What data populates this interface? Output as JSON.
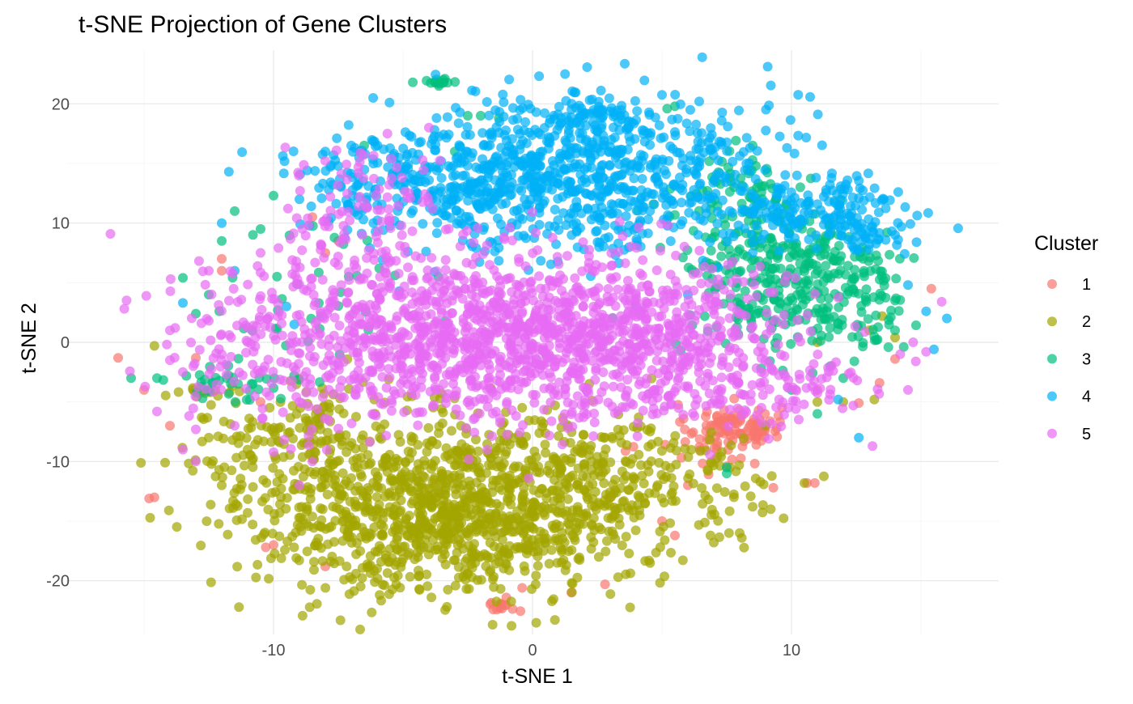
{
  "chart_data": {
    "type": "scatter",
    "title": "t-SNE Projection of Gene Clusters",
    "xlabel": "t-SNE 1",
    "ylabel": "t-SNE 2",
    "xlim": [
      -18,
      18
    ],
    "ylim": [
      -24.5,
      24.5
    ],
    "x_ticks": [
      -10,
      0,
      10
    ],
    "x_tick_labels": [
      "-10",
      "0",
      "10"
    ],
    "y_ticks": [
      -20,
      -10,
      0,
      10,
      20
    ],
    "y_tick_labels": [
      "-20",
      "-10",
      "0",
      "10",
      "20"
    ],
    "grid": true,
    "legend": {
      "title": "Cluster",
      "position": "right"
    },
    "series": [
      {
        "name": "1",
        "color": "#F8766D",
        "blobs": [
          {
            "cx": 7.8,
            "cy": -7.0,
            "sx": 0.9,
            "sy": 0.9,
            "n": 90
          },
          {
            "cx": -1.2,
            "cy": -22.0,
            "sx": 0.4,
            "sy": 0.3,
            "n": 14
          },
          {
            "cx": 6.5,
            "cy": -9.0,
            "sx": 1.2,
            "sy": 1.0,
            "n": 25
          }
        ],
        "points": [
          [
            -16.0,
            -1.3
          ],
          [
            -14.6,
            -13.0
          ],
          [
            -14.8,
            -13.1
          ],
          [
            -15.0,
            -4.0
          ],
          [
            -14.0,
            -7.0
          ],
          [
            -12.0,
            7.0
          ],
          [
            -12.0,
            6.0
          ],
          [
            -10.5,
            -5.0
          ],
          [
            -8.0,
            7.5
          ],
          [
            -7.5,
            8.5
          ],
          [
            -8.5,
            10.5
          ],
          [
            -10.0,
            -17.0
          ],
          [
            -10.3,
            -17.2
          ],
          [
            -8.0,
            -18.8
          ],
          [
            1.5,
            -21.0
          ],
          [
            2.8,
            -20.3
          ],
          [
            5.5,
            -16.2
          ],
          [
            10.9,
            -11.8
          ],
          [
            10.6,
            -11.8
          ],
          [
            9.3,
            -12.2
          ],
          [
            13.4,
            -3.4
          ],
          [
            14.0,
            -1.4
          ],
          [
            15.4,
            4.5
          ],
          [
            12.6,
            -5.1
          ],
          [
            11.0,
            -4.0
          ],
          [
            5.0,
            -15.0
          ],
          [
            6.0,
            -12.0
          ],
          [
            3.0,
            -13.0
          ],
          [
            -13.0,
            -1.3
          ],
          [
            -0.4,
            -20.6
          ]
        ]
      },
      {
        "name": "2",
        "color": "#A3A500",
        "blobs": [
          {
            "cx": -3.0,
            "cy": -14.0,
            "sx": 3.8,
            "sy": 3.6,
            "n": 1150
          },
          {
            "cx": 3.0,
            "cy": -11.0,
            "sx": 2.4,
            "sy": 2.4,
            "n": 170
          },
          {
            "cx": -8.5,
            "cy": -8.0,
            "sx": 1.6,
            "sy": 2.4,
            "n": 120
          },
          {
            "cx": -12.8,
            "cy": -4.2,
            "sx": 0.6,
            "sy": 0.2,
            "n": 14
          },
          {
            "cx": -11.5,
            "cy": -9.0,
            "sx": 1.0,
            "sy": 2.4,
            "n": 35
          },
          {
            "cx": 7.0,
            "cy": -12.0,
            "sx": 1.6,
            "sy": 2.4,
            "n": 30
          }
        ],
        "points": [
          [
            -14.6,
            -0.3
          ],
          [
            -12.0,
            -12.0
          ],
          [
            -11.0,
            -14.3
          ],
          [
            -12.5,
            -8.0
          ],
          [
            9.0,
            -7.0
          ],
          [
            11.0,
            -5.0
          ],
          [
            12.0,
            -5.0
          ],
          [
            14.0,
            0.4
          ],
          [
            11.0,
            0.0
          ],
          [
            13.0,
            1.0
          ],
          [
            8.5,
            -13.8
          ],
          [
            7.0,
            -16.8
          ],
          [
            4.5,
            -18.3
          ],
          [
            10.5,
            -11.8
          ],
          [
            13.5,
            2.2
          ],
          [
            13.2,
            -4.8
          ],
          [
            9.2,
            -14.0
          ],
          [
            -11.7,
            -4.2
          ],
          [
            -11.0,
            -9.0
          ],
          [
            8.0,
            -16.0
          ]
        ]
      },
      {
        "name": "3",
        "color": "#00BF7D",
        "blobs": [
          {
            "cx": 9.5,
            "cy": 5.5,
            "sx": 2.0,
            "sy": 3.5,
            "n": 330
          },
          {
            "cx": 12.5,
            "cy": 3.0,
            "sx": 1.2,
            "sy": 2.4,
            "n": 70
          },
          {
            "cx": 8.0,
            "cy": 13.0,
            "sx": 1.1,
            "sy": 1.4,
            "n": 55
          },
          {
            "cx": -3.7,
            "cy": 21.8,
            "sx": 0.35,
            "sy": 0.15,
            "n": 16
          },
          {
            "cx": -11.5,
            "cy": -3.5,
            "sx": 1.4,
            "sy": 0.8,
            "n": 35
          },
          {
            "cx": -9.0,
            "cy": 4.0,
            "sx": 2.4,
            "sy": 3.5,
            "n": 35
          }
        ],
        "points": [
          [
            -12.5,
            4.0
          ],
          [
            -13.5,
            5.4
          ],
          [
            -15.5,
            -3.0
          ],
          [
            -13.0,
            2.4
          ],
          [
            -12.0,
            8.5
          ],
          [
            -11.5,
            11.0
          ],
          [
            -10.0,
            12.3
          ],
          [
            -10.5,
            9.5
          ],
          [
            -2.5,
            19.0
          ],
          [
            -2.0,
            19.0
          ],
          [
            -1.3,
            18.8
          ],
          [
            5.5,
            19.8
          ],
          [
            5.2,
            19.6
          ],
          [
            -6.5,
            16.5
          ],
          [
            -3.0,
            16.0
          ],
          [
            12.0,
            -3.0
          ],
          [
            11.5,
            -2.0
          ],
          [
            11.0,
            -6.0
          ],
          [
            7.5,
            -10.5
          ],
          [
            7.5,
            -11.0
          ],
          [
            10.0,
            -4.0
          ],
          [
            14.0,
            1.0
          ],
          [
            14.0,
            3.5
          ],
          [
            -11.8,
            -3.0
          ],
          [
            -10.8,
            -3.5
          ],
          [
            -14.5,
            -3.0
          ],
          [
            8.5,
            16.5
          ]
        ]
      },
      {
        "name": "4",
        "color": "#00B0F6",
        "blobs": [
          {
            "cx": 1.5,
            "cy": 14.0,
            "sx": 4.0,
            "sy": 3.3,
            "n": 850
          },
          {
            "cx": -4.5,
            "cy": 13.5,
            "sx": 2.4,
            "sy": 1.8,
            "n": 160
          },
          {
            "cx": 11.0,
            "cy": 11.0,
            "sx": 1.8,
            "sy": 1.2,
            "n": 150
          },
          {
            "cx": 13.0,
            "cy": 9.0,
            "sx": 0.9,
            "sy": 0.8,
            "n": 40
          },
          {
            "cx": 2.5,
            "cy": 18.8,
            "sx": 1.4,
            "sy": 0.8,
            "n": 70
          }
        ],
        "points": [
          [
            -13.5,
            3.3
          ],
          [
            -12.0,
            10.0
          ],
          [
            -11.5,
            6.0
          ],
          [
            -9.5,
            3.0
          ],
          [
            -9.0,
            12.0
          ],
          [
            -9.2,
            1.5
          ],
          [
            -8.0,
            16.0
          ],
          [
            -7.0,
            16.5
          ],
          [
            14.5,
            4.8
          ],
          [
            15.2,
            2.6
          ],
          [
            15.5,
            -0.6
          ],
          [
            16.0,
            2.0
          ],
          [
            12.6,
            -8.0
          ],
          [
            11.8,
            -4.8
          ],
          [
            14.0,
            9.0
          ],
          [
            6.0,
            4.0
          ],
          [
            4.0,
            3.0
          ],
          [
            8.5,
            7.5
          ]
        ]
      },
      {
        "name": "5",
        "color": "#E76BF3",
        "blobs": [
          {
            "cx": -2.0,
            "cy": 0.5,
            "sx": 4.8,
            "sy": 3.5,
            "n": 1250
          },
          {
            "cx": 4.5,
            "cy": 1.0,
            "sx": 2.8,
            "sy": 3.0,
            "n": 320
          },
          {
            "cx": -6.5,
            "cy": 11.0,
            "sx": 1.5,
            "sy": 3.0,
            "n": 100
          },
          {
            "cx": 7.5,
            "cy": -3.5,
            "sx": 2.0,
            "sy": 2.0,
            "n": 90
          },
          {
            "cx": -10.5,
            "cy": 0.0,
            "sx": 1.5,
            "sy": 3.5,
            "n": 70
          },
          {
            "cx": 11.0,
            "cy": -3.5,
            "sx": 1.4,
            "sy": 1.2,
            "n": 30
          }
        ],
        "points": [
          [
            -14.5,
            -5.8
          ],
          [
            -13.5,
            -9.0
          ],
          [
            -13.0,
            -7.3
          ],
          [
            -14.0,
            1.0
          ],
          [
            -13.8,
            1.2
          ],
          [
            -12.5,
            1.8
          ],
          [
            -12.0,
            -1.0
          ],
          [
            -13.0,
            -10.0
          ],
          [
            -14.0,
            -1.5
          ],
          [
            -13.5,
            -2.5
          ],
          [
            -4.0,
            18.0
          ],
          [
            14.8,
            -1.6
          ],
          [
            15.2,
            -0.8
          ],
          [
            15.8,
            3.4
          ],
          [
            14.5,
            -4.0
          ],
          [
            14.7,
            0.0
          ],
          [
            14.2,
            -1.0
          ],
          [
            -11.5,
            -7.0
          ],
          [
            -12.5,
            6.0
          ],
          [
            -10.5,
            7.5
          ],
          [
            -9.0,
            -12.0
          ],
          [
            -8.5,
            -10.0
          ]
        ]
      }
    ]
  }
}
